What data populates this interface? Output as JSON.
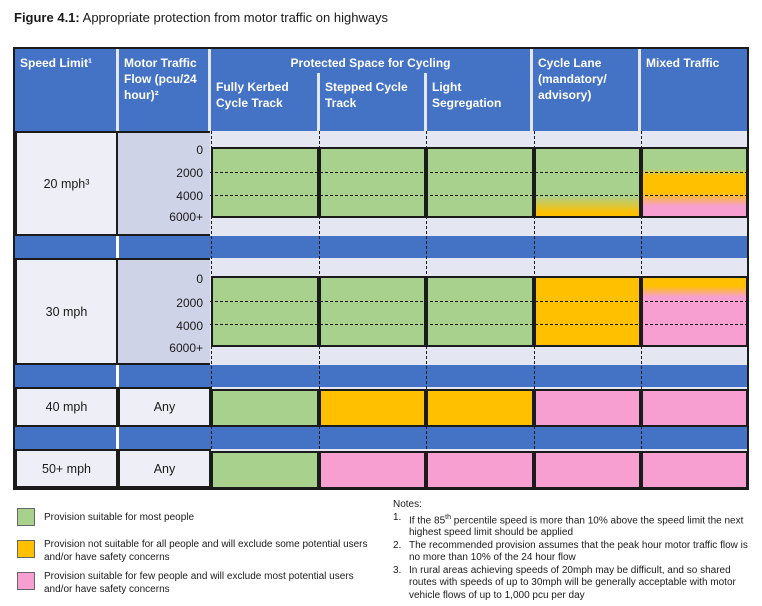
{
  "figure": {
    "label": "Figure 4.1:",
    "title": "Appropriate protection from motor traffic on highways"
  },
  "headers": {
    "speed_limit": "Speed Limit¹",
    "flow": "Motor Traffic Flow (pcu/24 hour)²",
    "protected": "Protected Space for Cycling",
    "kerbed": "Fully Kerbed Cycle Track",
    "stepped": "Stepped Cycle Track",
    "light": "Light Segregation",
    "cycle_lane": "Cycle Lane (mandatory/ advisory)",
    "mixed": "Mixed Traffic"
  },
  "flow_ticks": [
    "0",
    "2000",
    "4000",
    "6000+"
  ],
  "rows": {
    "r20": "20 mph³",
    "r30": "30 mph",
    "r40": "40 mph",
    "r50": "50+ mph",
    "any": "Any"
  },
  "colors": {
    "green": "#a9d18e",
    "orange": "#ffc000",
    "pink": "#f79fd0",
    "header_blue": "#4472c4"
  },
  "legend": [
    {
      "color": "green",
      "text": "Provision suitable for most people"
    },
    {
      "color": "orange",
      "text": "Provision not suitable for all people and will exclude some potential users and/or have safety concerns"
    },
    {
      "color": "pink",
      "text": "Provision suitable for few people and will exclude most potential users and/or have safety concerns"
    }
  ],
  "notes": {
    "title": "Notes:",
    "items": [
      {
        "num": "1.",
        "text": "If the 85th percentile speed is more than 10% above the speed limit the next highest speed limit should be applied"
      },
      {
        "num": "2.",
        "text": "The recommended provision assumes that the peak hour motor traffic flow is no more than 10% of the 24 hour flow"
      },
      {
        "num": "3.",
        "text": "In rural areas achieving speeds of 20mph may be difficult, and so shared routes with speeds of up to 30mph will be generally acceptable with motor vehicle flows of up to 1,000 pcu per day"
      }
    ]
  }
}
